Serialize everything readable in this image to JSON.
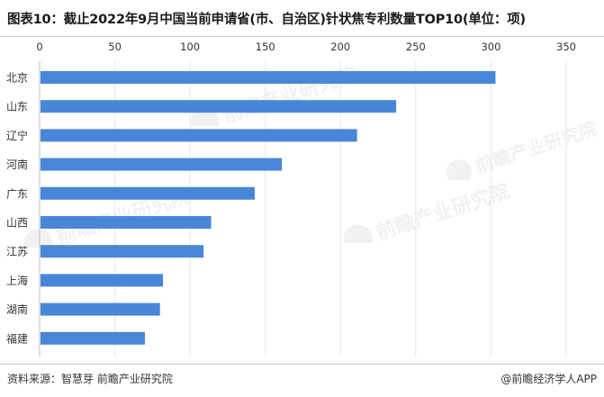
{
  "title": "图表10：截止2022年9月中国当前申请省(市、自治区)针状焦专利数量TOP10(单位：项)",
  "source": "资料来源：智慧芽 前瞻产业研究院",
  "brand": "@前瞻经济学人APP",
  "watermark": "前瞻产业研究院",
  "colors": {
    "bar": "#4a86d8",
    "grid": "#e6e6e6",
    "text": "#333333"
  },
  "chart_data": {
    "type": "bar",
    "orientation": "horizontal",
    "categories": [
      "北京",
      "山东",
      "辽宁",
      "河南",
      "广东",
      "山西",
      "江苏",
      "上海",
      "湖南",
      "福建"
    ],
    "values": [
      303,
      237,
      211,
      161,
      143,
      114,
      109,
      82,
      80,
      70
    ],
    "xlim": [
      0,
      350
    ],
    "xticks": [
      0,
      50,
      100,
      150,
      200,
      250,
      300,
      350
    ],
    "x_axis_position": "top",
    "grid": true,
    "legend": "none"
  }
}
